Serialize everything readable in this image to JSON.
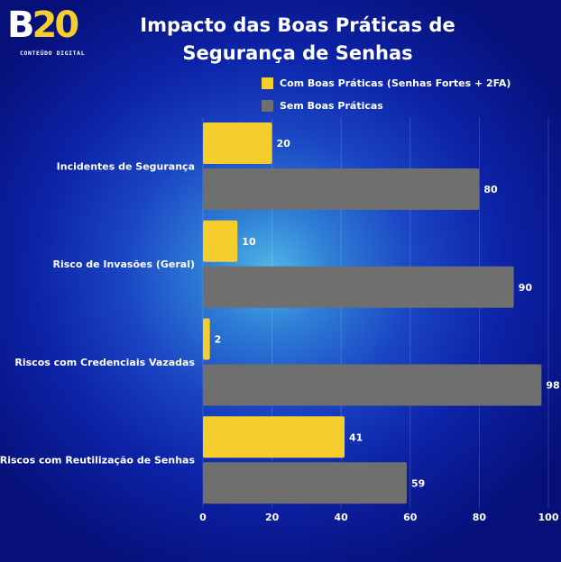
{
  "logo": {
    "main_b": "B",
    "main_num": "20",
    "tagline": "CONTEÚDO DIGITAL"
  },
  "colors": {
    "with": "#f5cd2c",
    "without": "#6f6f6f",
    "text": "#ffffff"
  },
  "chart_data": {
    "type": "bar",
    "orientation": "horizontal",
    "title": "Impacto das Boas Práticas de Segurança de Senhas",
    "categories": [
      "Incidentes de Segurança",
      "Risco de Invasões (Geral)",
      "Riscos com Credenciais Vazadas",
      "Riscos com Reutilização de Senhas"
    ],
    "series": [
      {
        "name": "Com Boas Práticas (Senhas Fortes + 2FA)",
        "values": [
          20,
          10,
          2,
          41
        ],
        "color": "#f5cd2c"
      },
      {
        "name": "Sem Boas Práticas",
        "values": [
          80,
          90,
          98,
          59
        ],
        "color": "#6f6f6f"
      }
    ],
    "xlim": [
      0,
      100
    ],
    "xticks": [
      0,
      20,
      40,
      60,
      80,
      100
    ],
    "xlabel": "",
    "ylabel": "",
    "grid": true,
    "legend": "top-right",
    "data_labels": true
  }
}
